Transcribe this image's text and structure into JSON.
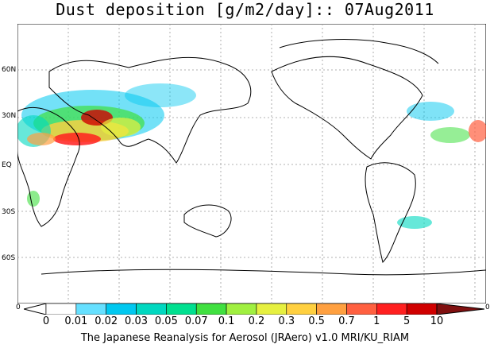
{
  "title": "Dust deposition [g/m2/day]:: 07Aug2011",
  "lat_labels": [
    "60N",
    "30N",
    "EQ",
    "30S",
    "60S"
  ],
  "colorbar": {
    "labels": [
      "0",
      "0.01",
      "0.02",
      "0.03",
      "0.05",
      "0.07",
      "0.1",
      "0.2",
      "0.3",
      "0.5",
      "0.7",
      "1",
      "5",
      "10"
    ],
    "colors": [
      "#ffffff",
      "#ffffff",
      "#66e0ff",
      "#00c8f0",
      "#00d8c0",
      "#00e090",
      "#40e040",
      "#a0f040",
      "#e6f040",
      "#ffd040",
      "#ffa040",
      "#ff6040",
      "#ff2020",
      "#d00000",
      "#900000",
      "#801010"
    ],
    "edge_left": "0",
    "edge_right": "0"
  },
  "footer": "The Japanese Reanalysis for Aerosol (JRAero) v1.0 MRI/KU_RIAM"
}
